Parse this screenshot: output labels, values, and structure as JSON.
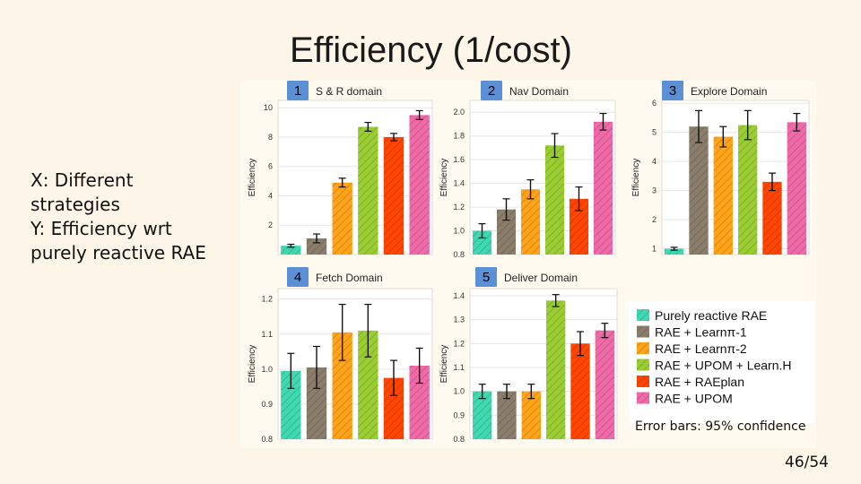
{
  "slide": {
    "title": "Efficiency (1/cost)",
    "notes": [
      "X: Different",
      "strategies",
      "Y: Efficiency wrt",
      "purely reactive RAE"
    ],
    "error_note": "Error bars: 95% confidence",
    "page": "46/54"
  },
  "legend": [
    {
      "label": "Purely reactive RAE",
      "color": "#3fd8b0"
    },
    {
      "label": "RAE + Learnπ-1",
      "color": "#8b7d6b"
    },
    {
      "label": "RAE + Learnπ-2",
      "color": "#ffa31a"
    },
    {
      "label": "RAE + UPOM + Learn.H",
      "color": "#9acd32"
    },
    {
      "label": "RAE + RAEplan",
      "color": "#ff4500"
    },
    {
      "label": "RAE + UPOM",
      "color": "#f06aa8"
    }
  ],
  "chart_data": [
    {
      "type": "bar",
      "badge": "1",
      "title": "S & R domain",
      "ylabel": "Efficiency",
      "ylim": [
        0,
        10.5
      ],
      "yticks": [
        2,
        4,
        6,
        8,
        10
      ],
      "values": [
        0.6,
        1.1,
        4.9,
        8.7,
        8.0,
        9.5
      ],
      "errors": [
        0.1,
        0.3,
        0.3,
        0.3,
        0.25,
        0.3
      ]
    },
    {
      "type": "bar",
      "badge": "2",
      "title": "Nav Domain",
      "ylabel": "Efficiency",
      "ylim": [
        0.8,
        2.1
      ],
      "yticks": [
        0.8,
        1.0,
        1.2,
        1.4,
        1.6,
        1.8,
        2.0
      ],
      "ytick_format": 1,
      "values": [
        1.0,
        1.18,
        1.35,
        1.72,
        1.27,
        1.92
      ],
      "errors": [
        0.06,
        0.09,
        0.08,
        0.1,
        0.1,
        0.07
      ]
    },
    {
      "type": "bar",
      "badge": "3",
      "title": "Explore Domain",
      "ylabel": "Efficiency",
      "ylim": [
        0.8,
        6.1
      ],
      "yticks": [
        1,
        2,
        3,
        4,
        5,
        6
      ],
      "values": [
        1.0,
        5.2,
        4.85,
        5.25,
        3.3,
        5.35
      ],
      "errors": [
        0.05,
        0.55,
        0.35,
        0.5,
        0.3,
        0.3
      ]
    },
    {
      "type": "bar",
      "badge": "4",
      "title": "Fetch Domain",
      "ylabel": "Efficiency",
      "ylim": [
        0.8,
        1.23
      ],
      "yticks": [
        0.8,
        0.9,
        1.0,
        1.1,
        1.2
      ],
      "ytick_format": 1,
      "values": [
        0.995,
        1.005,
        1.105,
        1.11,
        0.975,
        1.01
      ],
      "errors": [
        0.05,
        0.06,
        0.08,
        0.075,
        0.05,
        0.05
      ]
    },
    {
      "type": "bar",
      "badge": "5",
      "title": "Deliver Domain",
      "ylabel": "Efficiency",
      "ylim": [
        0.8,
        1.43
      ],
      "yticks": [
        0.8,
        0.9,
        1.0,
        1.1,
        1.2,
        1.3,
        1.4
      ],
      "ytick_format": 1,
      "values": [
        1.0,
        1.0,
        1.0,
        1.38,
        1.2,
        1.255
      ],
      "errors": [
        0.03,
        0.03,
        0.03,
        0.025,
        0.05,
        0.03
      ]
    }
  ]
}
